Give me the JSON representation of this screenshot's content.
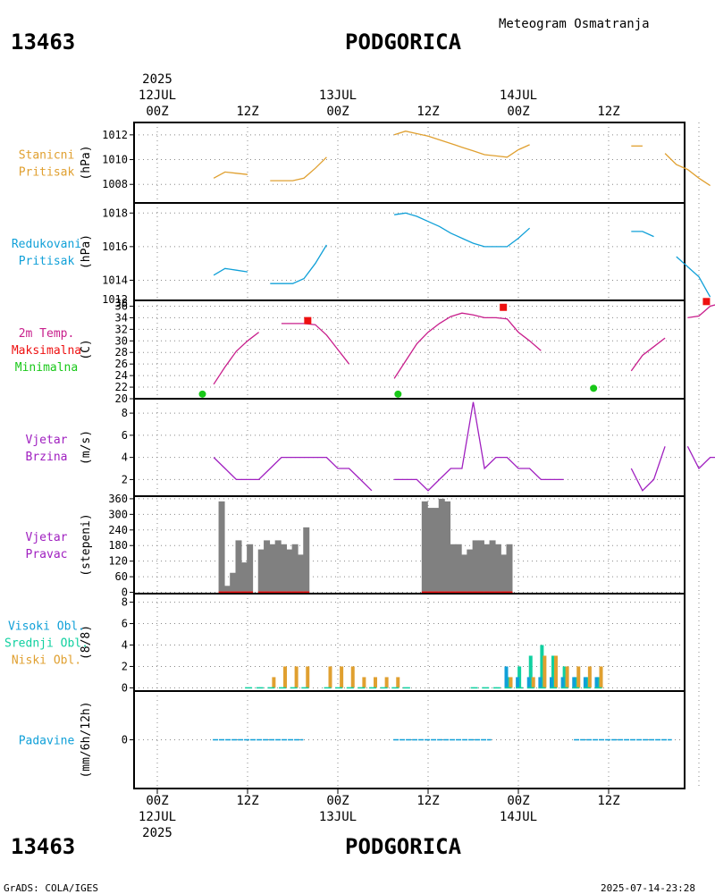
{
  "header": {
    "station_id": "13463",
    "station_name": "PODGORICA",
    "product_title": "Meteogram Osmatranja",
    "footer_left": "GrADS: COLA/IGES",
    "footer_right": "2025-07-14-23:28"
  },
  "time_axis": {
    "start_hour": 0,
    "end_hour": 72,
    "step_hours": 3,
    "ticks": [
      {
        "hour": 0,
        "label": "00Z",
        "date": "12JUL",
        "year": "2025"
      },
      {
        "hour": 12,
        "label": "12Z"
      },
      {
        "hour": 24,
        "label": "00Z",
        "date": "13JUL"
      },
      {
        "hour": 36,
        "label": "12Z"
      },
      {
        "hour": 48,
        "label": "00Z",
        "date": "14JUL"
      },
      {
        "hour": 60,
        "label": "12Z"
      }
    ]
  },
  "colors": {
    "station_pressure": "#e0a030",
    "reduced_pressure": "#10a0d8",
    "temperature": "#c81e8c",
    "tmax": "#ee1010",
    "tmin": "#18c818",
    "wind": "#a020c0",
    "bar": "#808080",
    "high_cloud": "#10a0d8",
    "mid_cloud": "#10d0a0",
    "low_cloud": "#e0a030",
    "precip": "#10a0d8",
    "label_wind": "#a020c0"
  },
  "chart_data": [
    {
      "id": "station-pressure",
      "type": "line",
      "title_lines": [
        "Stanicni",
        "Pritisak"
      ],
      "ylabel": "(hPa)",
      "ylim": [
        1006.5,
        1013
      ],
      "yticks": [
        1008,
        1010,
        1012
      ],
      "series": [
        {
          "name": "Stanicni Pritisak",
          "values": [
            null,
            null,
            null,
            null,
            null,
            1008.5,
            1009.0,
            1008.9,
            1008.8,
            null,
            1008.3,
            1008.3,
            1008.3,
            1008.5,
            1009.3,
            1010.2,
            null,
            null,
            null,
            null,
            null,
            1012.0,
            1012.3,
            1012.1,
            1011.9,
            1011.6,
            1011.3,
            1011.0,
            1010.7,
            1010.4,
            1010.3,
            1010.2,
            1010.8,
            1011.2,
            null,
            null,
            null,
            null,
            null,
            null,
            null,
            null,
            1011.1,
            1011.1,
            null,
            1010.5,
            1009.6,
            1009.2,
            1008.5,
            1007.9,
            null,
            1006.8,
            1006.8,
            1007.2,
            1007.8
          ]
        }
      ]
    },
    {
      "id": "reduced-pressure",
      "type": "line",
      "title_lines": [
        "Redukovani",
        "Pritisak"
      ],
      "ylabel": "(hPa)",
      "ylim": [
        1012.8,
        1018.6
      ],
      "yticks": [
        1014,
        1016,
        1018
      ],
      "bottom_tick_label": "1012",
      "series": [
        {
          "name": "Redukovani Pritisak",
          "values": [
            null,
            null,
            null,
            null,
            null,
            1014.3,
            1014.7,
            1014.6,
            1014.5,
            null,
            1013.8,
            1013.8,
            1013.8,
            1014.1,
            1015.0,
            1016.1,
            null,
            null,
            null,
            null,
            null,
            1017.9,
            1018.0,
            1017.8,
            1017.5,
            1017.2,
            1016.8,
            1016.5,
            1016.2,
            1016.0,
            1016.0,
            1016.0,
            1016.5,
            1017.1,
            null,
            null,
            null,
            null,
            null,
            null,
            null,
            null,
            1016.9,
            1016.9,
            1016.6,
            null,
            1015.4,
            1014.8,
            1014.2,
            1013.0,
            null,
            1012.4,
            1012.4,
            1012.9,
            1013.5
          ]
        }
      ]
    },
    {
      "id": "temperature",
      "type": "line",
      "title_lines": [
        "2m Temp.",
        "Maksimalna",
        "Minimalna"
      ],
      "ylabel": "(C)",
      "ylim": [
        20,
        37
      ],
      "yticks": [
        20,
        22,
        24,
        26,
        28,
        30,
        32,
        34,
        36
      ],
      "top_tick_label": "38",
      "series": [
        {
          "name": "2m Temp.",
          "values": [
            null,
            null,
            null,
            null,
            null,
            22.5,
            25.5,
            28.2,
            30.0,
            31.5,
            null,
            33.0,
            33.0,
            33.0,
            32.8,
            31.0,
            28.5,
            26.0,
            null,
            null,
            null,
            23.5,
            26.5,
            29.5,
            31.5,
            33.0,
            34.2,
            34.8,
            34.5,
            34.0,
            34.0,
            33.8,
            31.5,
            30.0,
            28.3,
            null,
            null,
            null,
            null,
            null,
            null,
            null,
            24.8,
            27.5,
            29.0,
            30.5,
            null,
            34.0,
            34.3,
            36.0,
            36.5,
            null,
            34.5,
            32.0,
            28.0
          ]
        }
      ],
      "tmax": [
        {
          "hour": 20,
          "value": 33.5
        },
        {
          "hour": 46,
          "value": 35.8
        },
        {
          "hour": 73,
          "value": 36.8
        }
      ],
      "tmin": [
        {
          "hour": 6,
          "value": 20.8
        },
        {
          "hour": 32,
          "value": 20.8
        },
        {
          "hour": 58,
          "value": 21.8
        }
      ]
    },
    {
      "id": "wind-speed",
      "type": "line",
      "title_lines": [
        "Vjetar",
        "Brzina"
      ],
      "ylabel": "(m/s)",
      "ylim": [
        0.5,
        9.3
      ],
      "yticks": [
        2,
        4,
        6,
        8
      ],
      "series": [
        {
          "name": "Vjetar Brzina",
          "values": [
            null,
            null,
            null,
            null,
            null,
            4,
            3,
            2,
            2,
            2,
            3,
            4,
            4,
            4,
            4,
            4,
            3,
            3,
            2,
            1,
            null,
            2,
            2,
            2,
            1,
            2,
            3,
            3,
            9,
            3,
            4,
            4,
            3,
            3,
            2,
            2,
            2,
            null,
            null,
            null,
            null,
            null,
            3,
            1,
            2,
            5,
            null,
            5,
            3,
            4,
            4,
            5,
            null,
            3,
            3,
            2,
            2
          ]
        }
      ]
    },
    {
      "id": "wind-direction",
      "type": "bar",
      "title_lines": [
        "Vjetar",
        "Pravac"
      ],
      "ylabel": "(stepeni)",
      "ylim": [
        -5,
        370
      ],
      "yticks": [
        0,
        60,
        120,
        180,
        240,
        300,
        360
      ],
      "values": [
        null,
        null,
        null,
        null,
        null,
        350,
        25,
        75,
        200,
        115,
        185,
        null,
        165,
        200,
        185,
        200,
        185,
        165,
        185,
        145,
        250,
        null,
        null,
        null,
        null,
        null,
        null,
        null,
        null,
        null,
        null,
        null,
        null,
        null,
        null,
        null,
        null,
        null,
        null,
        null,
        null,
        350,
        325,
        325,
        360,
        350,
        185,
        185,
        145,
        165,
        200,
        200,
        185,
        200,
        185,
        145,
        185,
        null,
        null,
        null,
        null,
        null,
        null,
        null,
        null,
        null,
        null,
        null,
        null,
        null,
        null,
        null,
        null,
        null,
        null,
        null,
        null,
        null,
        null,
        null,
        null,
        null,
        null,
        null
      ]
    },
    {
      "id": "clouds",
      "type": "bar",
      "title_lines": [
        "Visoki Obl.",
        "Srednji Obl.",
        "Niski Obl."
      ],
      "ylabel": "(8/8)",
      "ylim": [
        -0.3,
        8.8
      ],
      "yticks": [
        0,
        2,
        4,
        6,
        8
      ],
      "series": [
        {
          "name": "Visoki Obl.",
          "values": [
            0,
            0,
            0,
            0,
            0,
            0,
            0,
            0,
            0,
            0,
            0,
            0,
            0,
            0,
            0,
            0,
            0,
            0,
            0,
            0,
            0,
            0,
            0,
            0,
            0,
            0,
            0,
            0,
            2,
            1,
            1,
            1,
            1,
            1,
            1,
            1,
            1
          ]
        },
        {
          "name": "Srednji Obl.",
          "values": [
            0,
            0,
            0,
            0,
            0,
            0,
            0,
            0,
            0,
            0,
            0,
            0,
            0,
            0,
            0,
            0,
            0,
            0,
            0,
            0,
            0,
            0,
            0,
            0,
            0,
            0,
            0,
            0,
            1,
            2,
            3,
            4,
            3,
            2,
            1,
            1,
            1
          ]
        },
        {
          "name": "Niski Obl.",
          "values": [
            null,
            null,
            null,
            null,
            null,
            0,
            0,
            1,
            2,
            2,
            2,
            null,
            2,
            2,
            2,
            1,
            1,
            1,
            1,
            0,
            null,
            null,
            null,
            null,
            null,
            0,
            0,
            0,
            1,
            0,
            1,
            3,
            3,
            2,
            2,
            2,
            2
          ]
        }
      ]
    },
    {
      "id": "precipitation",
      "type": "bar",
      "title_lines": [
        "Padavine"
      ],
      "ylabel": "(mm/6h/12h)",
      "ylim": [
        -1,
        1
      ],
      "yticks": [
        0
      ],
      "values": [
        0,
        0,
        0
      ]
    }
  ]
}
